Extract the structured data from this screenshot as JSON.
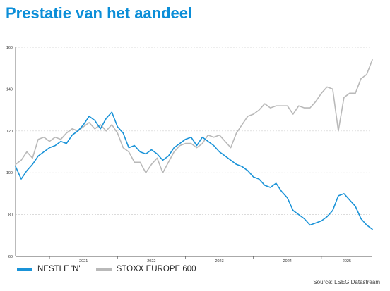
{
  "title": "Prestatie van het aandeel",
  "source": "Source: LSEG Datastream",
  "colors": {
    "nestle": "#1a93d8",
    "stoxx": "#b9b9b9",
    "title": "#0b8ed8",
    "grid": "#cfcfcf"
  },
  "chart_data": {
    "type": "line",
    "title": "Prestatie van het aandeel",
    "xlabel": "",
    "ylabel": "",
    "ylim": [
      60,
      160
    ],
    "yticks": [
      "60",
      "80",
      "100",
      "120",
      "140",
      "160"
    ],
    "xlim": [
      "2020-07",
      "2025-10"
    ],
    "x_tick_labels": [
      "2021",
      "2022",
      "2023",
      "2024",
      "2025"
    ],
    "grid": "horizontal",
    "legend": "bottom-left",
    "series": [
      {
        "name": "NESTLE 'N'",
        "color": "#1a93d8",
        "x": [
          "2020-07",
          "2020-08",
          "2020-09",
          "2020-10",
          "2020-11",
          "2020-12",
          "2021-01",
          "2021-02",
          "2021-03",
          "2021-04",
          "2021-05",
          "2021-06",
          "2021-07",
          "2021-08",
          "2021-09",
          "2021-10",
          "2021-11",
          "2021-12",
          "2022-01",
          "2022-02",
          "2022-03",
          "2022-04",
          "2022-05",
          "2022-06",
          "2022-07",
          "2022-08",
          "2022-09",
          "2022-10",
          "2022-11",
          "2022-12",
          "2023-01",
          "2023-02",
          "2023-03",
          "2023-04",
          "2023-05",
          "2023-06",
          "2023-07",
          "2023-08",
          "2023-09",
          "2023-10",
          "2023-11",
          "2023-12",
          "2024-01",
          "2024-02",
          "2024-03",
          "2024-04",
          "2024-05",
          "2024-06",
          "2024-07",
          "2024-08",
          "2024-09",
          "2024-10",
          "2024-11",
          "2024-12",
          "2025-01",
          "2025-02",
          "2025-03",
          "2025-04",
          "2025-05",
          "2025-06",
          "2025-07",
          "2025-08",
          "2025-09",
          "2025-10"
        ],
        "values": [
          103,
          97,
          101,
          104,
          108,
          110,
          112,
          113,
          115,
          114,
          118,
          120,
          123,
          127,
          125,
          121,
          126,
          129,
          122,
          119,
          112,
          113,
          110,
          109,
          111,
          109,
          106,
          108,
          112,
          114,
          116,
          117,
          113,
          117,
          115,
          113,
          110,
          108,
          106,
          104,
          103,
          101,
          98,
          97,
          94,
          93,
          95,
          91,
          88,
          82,
          80,
          78,
          75,
          76,
          77,
          79,
          82,
          89,
          90,
          87,
          84,
          78,
          75,
          73
        ]
      },
      {
        "name": "STOXX EUROPE 600",
        "color": "#b9b9b9",
        "x": [
          "2020-07",
          "2020-08",
          "2020-09",
          "2020-10",
          "2020-11",
          "2020-12",
          "2021-01",
          "2021-02",
          "2021-03",
          "2021-04",
          "2021-05",
          "2021-06",
          "2021-07",
          "2021-08",
          "2021-09",
          "2021-10",
          "2021-11",
          "2021-12",
          "2022-01",
          "2022-02",
          "2022-03",
          "2022-04",
          "2022-05",
          "2022-06",
          "2022-07",
          "2022-08",
          "2022-09",
          "2022-10",
          "2022-11",
          "2022-12",
          "2023-01",
          "2023-02",
          "2023-03",
          "2023-04",
          "2023-05",
          "2023-06",
          "2023-07",
          "2023-08",
          "2023-09",
          "2023-10",
          "2023-11",
          "2023-12",
          "2024-01",
          "2024-02",
          "2024-03",
          "2024-04",
          "2024-05",
          "2024-06",
          "2024-07",
          "2024-08",
          "2024-09",
          "2024-10",
          "2024-11",
          "2024-12",
          "2025-01",
          "2025-02",
          "2025-03",
          "2025-04",
          "2025-05",
          "2025-06",
          "2025-07",
          "2025-08",
          "2025-09",
          "2025-10"
        ],
        "values": [
          104,
          106,
          110,
          107,
          116,
          117,
          115,
          117,
          116,
          119,
          121,
          120,
          122,
          124,
          121,
          123,
          120,
          123,
          119,
          112,
          110,
          105,
          105,
          100,
          104,
          107,
          100,
          105,
          110,
          113,
          114,
          114,
          112,
          114,
          118,
          117,
          118,
          115,
          112,
          119,
          123,
          127,
          128,
          130,
          133,
          131,
          132,
          132,
          132,
          128,
          132,
          131,
          131,
          134,
          138,
          141,
          140,
          120,
          136,
          138,
          138,
          145,
          147,
          154
        ]
      }
    ]
  }
}
